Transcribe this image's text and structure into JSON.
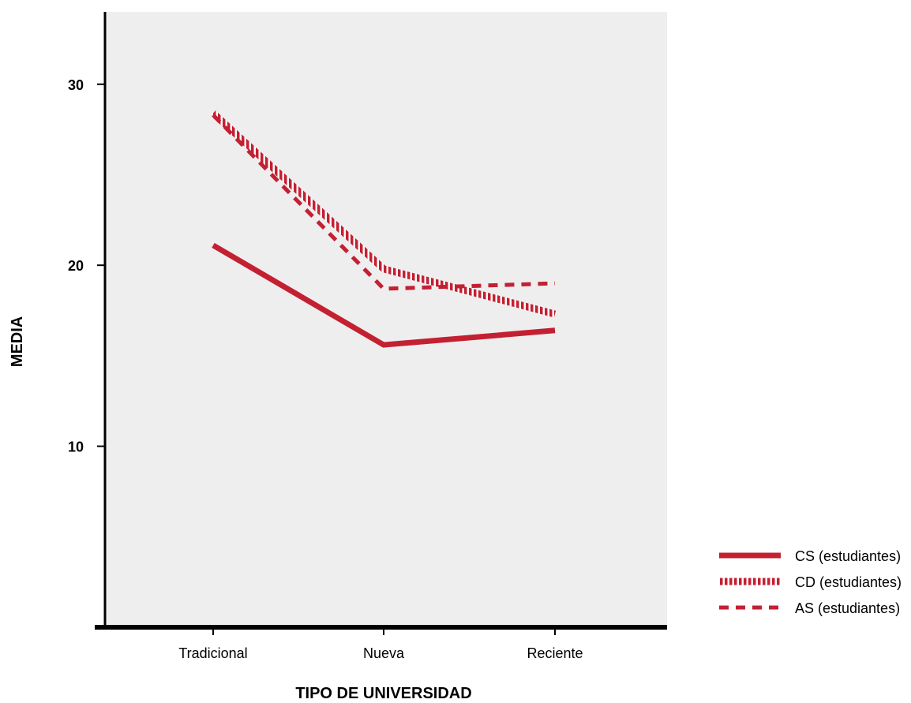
{
  "chart_data": {
    "type": "line",
    "title": "",
    "xlabel": "TIPO DE UNIVERSIDAD",
    "ylabel": "MEDIA",
    "categories": [
      "Tradicional",
      "Nueva",
      "Reciente"
    ],
    "ylim": [
      0,
      34
    ],
    "yticks": [
      10,
      20,
      30
    ],
    "grid": false,
    "legend_position": "bottom-right",
    "background_color": "#eeeeef",
    "series": [
      {
        "name": "CS (estudiantes)",
        "values": [
          21.1,
          15.6,
          16.4
        ],
        "style": "solid",
        "color": "#c32032"
      },
      {
        "name": "CD (estudiantes)",
        "values": [
          28.4,
          19.8,
          17.3
        ],
        "style": "hatched",
        "color": "#c32032"
      },
      {
        "name": "AS (estudiantes)",
        "values": [
          28.3,
          18.7,
          19.0
        ],
        "style": "dashed",
        "color": "#c32032"
      }
    ]
  }
}
